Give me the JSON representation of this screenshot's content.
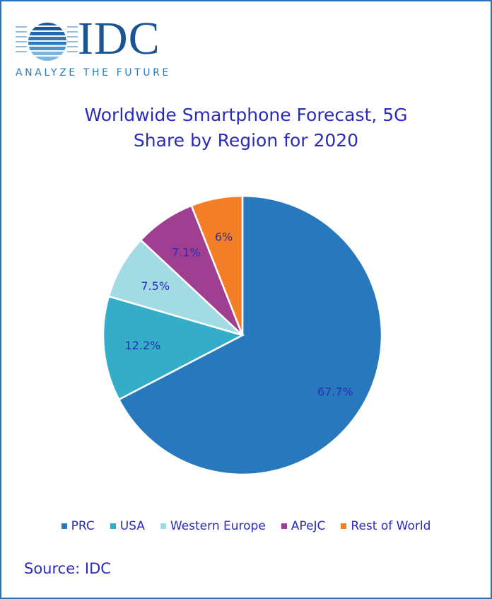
{
  "logo": {
    "name": "IDC",
    "tagline": "ANALYZE THE FUTURE"
  },
  "chart_data": {
    "type": "pie",
    "title": [
      "Worldwide Smartphone Forecast, 5G",
      "Share by Region for 2020"
    ],
    "categories": [
      "PRC",
      "USA",
      "Western Europe",
      "APeJC",
      "Rest of World"
    ],
    "values": [
      67.7,
      12.2,
      7.5,
      7.1,
      6
    ],
    "labels": [
      "67.7%",
      "12.2%",
      "7.5%",
      "7.1%",
      "6%"
    ],
    "colors": [
      "#2878bd",
      "#36adc8",
      "#a3dbe5",
      "#a03f92",
      "#f47e26"
    ],
    "legend_position": "bottom",
    "start": "top, clockwise"
  },
  "source": "Source: IDC"
}
